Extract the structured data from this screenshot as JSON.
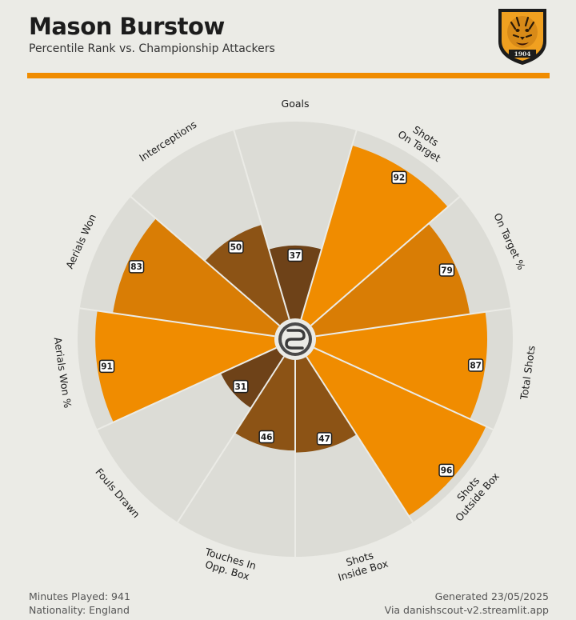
{
  "header": {
    "title": "Mason Burstow",
    "subtitle": "Percentile Rank vs. Championship Attackers"
  },
  "crest": {
    "year": "1904",
    "colors": {
      "shield_bg": "#f0a020",
      "border": "#1c1c1c"
    }
  },
  "colors": {
    "accent": "#f08c00",
    "background": "#ebebe6",
    "slice_bg": "#dcdcd6",
    "value_high": "#f08c00",
    "value_upper": "#d97d05",
    "value_mid": "#8c5315",
    "value_low": "#6e4218"
  },
  "chart_data": {
    "type": "pie",
    "subtype": "polar-radar",
    "title": "Mason Burstow",
    "subtitle": "Percentile Rank vs. Championship Attackers",
    "range": [
      0,
      100
    ],
    "metrics": [
      {
        "label": "Goals",
        "value": 37
      },
      {
        "label": "Shots\nOn Target",
        "value": 92
      },
      {
        "label": "On Target %",
        "value": 79
      },
      {
        "label": "Total Shots",
        "value": 87
      },
      {
        "label": "Shots\nOutside Box",
        "value": 96
      },
      {
        "label": "Shots\nInside Box",
        "value": 47
      },
      {
        "label": "Touches In\nOpp. Box",
        "value": 46
      },
      {
        "label": "Fouls Drawn",
        "value": 31
      },
      {
        "label": "Aerials Won %",
        "value": 91
      },
      {
        "label": "Aerials Won",
        "value": 83
      },
      {
        "label": "Interceptions",
        "value": 50
      }
    ]
  },
  "footer": {
    "minutes": "Minutes Played: 941",
    "nationality": "Nationality: England",
    "generated": "Generated 23/05/2025",
    "source": "Via danishscout-v2.streamlit.app"
  }
}
